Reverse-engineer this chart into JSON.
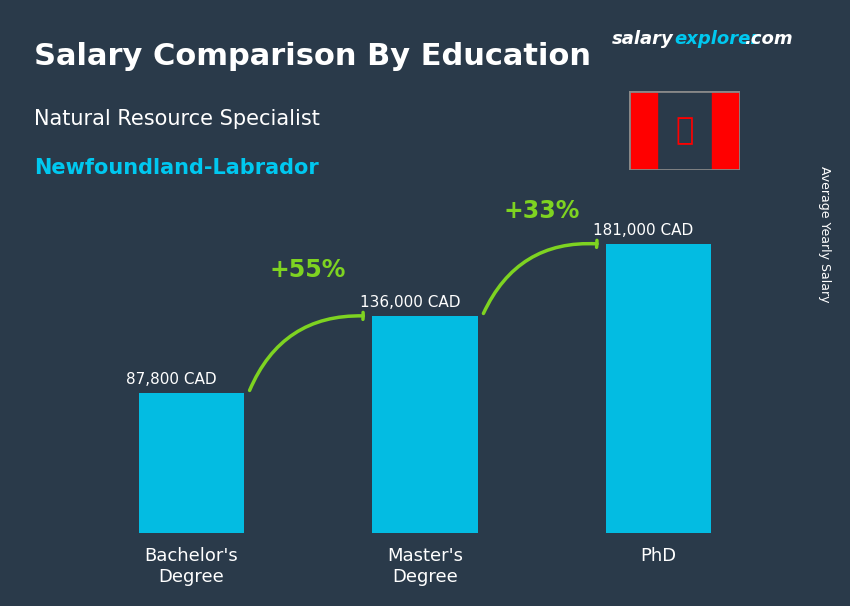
{
  "title_main": "Salary Comparison By Education",
  "subtitle_job": "Natural Resource Specialist",
  "subtitle_region": "Newfoundland-Labrador",
  "categories": [
    "Bachelor's\nDegree",
    "Master's\nDegree",
    "PhD"
  ],
  "values": [
    87800,
    136000,
    181000
  ],
  "value_labels": [
    "87,800 CAD",
    "136,000 CAD",
    "181,000 CAD"
  ],
  "bar_color": "#00C8F0",
  "bar_color_top": "#00AADD",
  "background_color": "#2a3a4a",
  "arrow_color": "#7ED321",
  "pct_labels": [
    "+55%",
    "+33%"
  ],
  "ylabel_side": "Average Yearly Salary",
  "website": "salaryexplorer.com",
  "website_salary": "salary",
  "website_explorer": "explorer",
  "ylim_max": 220000,
  "bar_width": 0.45
}
